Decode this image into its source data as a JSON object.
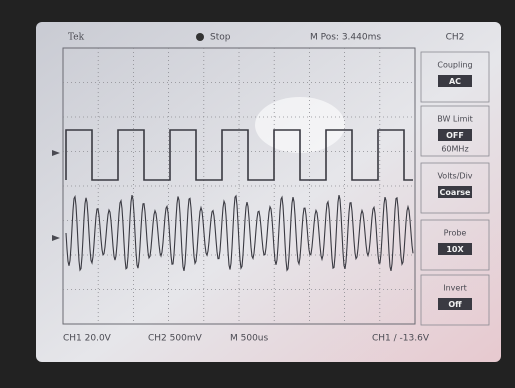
{
  "header": {
    "brand": "Tek",
    "status": "Stop",
    "position": "M Pos: 3.440ms",
    "channel": "CH2"
  },
  "menu": [
    {
      "label": "Coupling",
      "value": "AC"
    },
    {
      "label": "BW Limit",
      "value": "OFF",
      "note": "60MHz"
    },
    {
      "label": "Volts/Div",
      "value": "Coarse"
    },
    {
      "label": "Probe",
      "value": "10X"
    },
    {
      "label": "Invert",
      "value": "Off"
    }
  ],
  "footer": {
    "ch1": "CH1 20.0V",
    "ch2": "CH2 500mV",
    "time": "M 500us",
    "trigger": "CH1 / -13.6V"
  }
}
